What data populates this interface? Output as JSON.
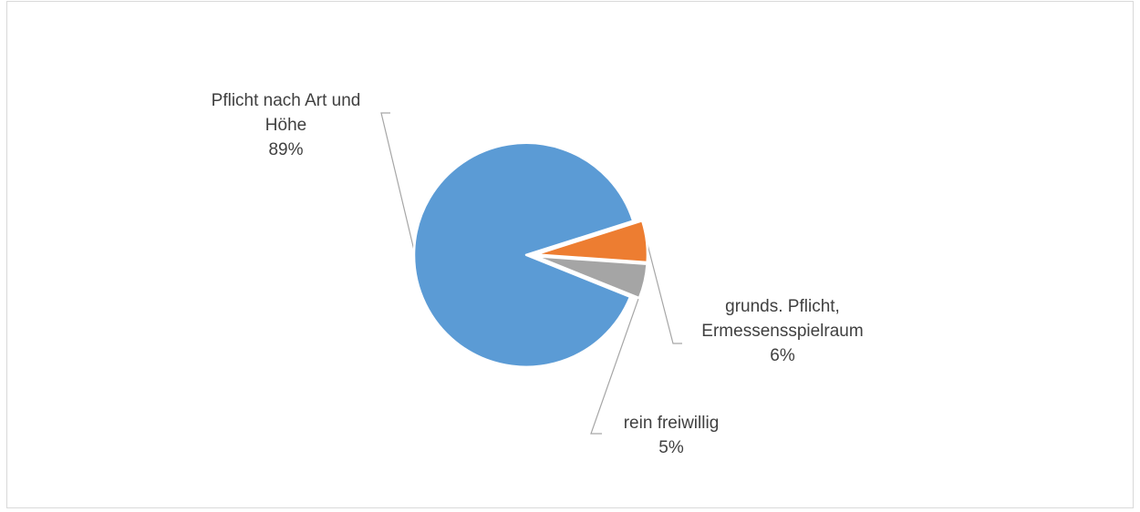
{
  "chart_data": {
    "type": "pie",
    "title": "",
    "categories": [
      "Pflicht nach Art und Höhe",
      "grunds. Pflicht, Ermessensspielraum",
      "rein freiwillig"
    ],
    "values": [
      89,
      6,
      5
    ],
    "labels": [
      {
        "name_lines": [
          "Pflicht nach Art und",
          "Höhe"
        ],
        "percent": "89%"
      },
      {
        "name_lines": [
          "grunds. Pflicht,",
          "Ermessensspielraum"
        ],
        "percent": "6%"
      },
      {
        "name_lines": [
          "rein freiwillig"
        ],
        "percent": "5%"
      }
    ],
    "colors": [
      "#5b9bd5",
      "#ed7d31",
      "#a5a5a5"
    ],
    "start_angle_deg": 112,
    "exploded": true,
    "legend": "none",
    "leader_line_color": "#a6a6a6"
  }
}
